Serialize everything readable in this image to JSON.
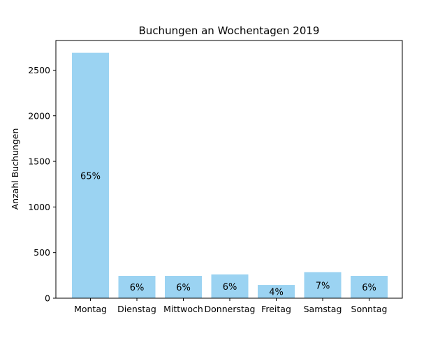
{
  "chart_data": {
    "type": "bar",
    "title": "Buchungen an Wochentagen 2019",
    "xlabel": "",
    "ylabel": "Anzahl Buchungen",
    "categories": [
      "Montag",
      "Dienstag",
      "Mittwoch",
      "Donnerstag",
      "Freitag",
      "Samstag",
      "Sonntag"
    ],
    "values": [
      2690,
      245,
      245,
      260,
      145,
      285,
      245
    ],
    "data_labels": [
      "65%",
      "6%",
      "6%",
      "6%",
      "4%",
      "7%",
      "6%"
    ],
    "ylim": [
      0,
      2825
    ],
    "yticks": [
      0,
      500,
      1000,
      1500,
      2000,
      2500
    ],
    "grid": false,
    "legend": "none",
    "colors": {
      "bar": "#9bd3f2",
      "axis": "#000000",
      "text": "#000000"
    }
  }
}
